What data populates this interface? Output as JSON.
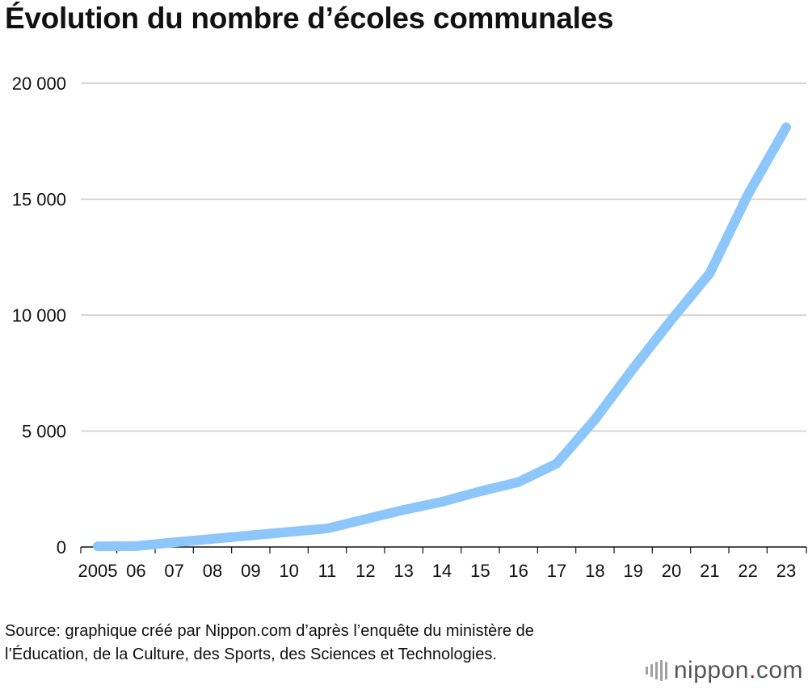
{
  "chart_data": {
    "type": "line",
    "title": "Évolution du nombre d’écoles communales",
    "xlabel": "",
    "ylabel": "",
    "categories": [
      "2005",
      "06",
      "07",
      "08",
      "09",
      "10",
      "11",
      "12",
      "13",
      "14",
      "15",
      "16",
      "17",
      "18",
      "19",
      "20",
      "21",
      "22",
      "23"
    ],
    "series": [
      {
        "name": "Écoles communales",
        "values": [
          30,
          40,
          200,
          350,
          500,
          650,
          800,
          1200,
          1600,
          1950,
          2400,
          2800,
          3600,
          5500,
          7700,
          9800,
          11800,
          15200,
          18100
        ],
        "color": "#8cc6fb"
      }
    ],
    "ylim": [
      0,
      20000
    ],
    "yticks": [
      0,
      5000,
      10000,
      15000,
      20000
    ],
    "ytick_labels": [
      "0",
      "5 000",
      "10 000",
      "15 000",
      "20 000"
    ],
    "grid": true,
    "legend": "none"
  },
  "source": "Source: graphique créé par Nippon.com d’après l’enquête du ministère de l’Éducation, de la Culture, des Sports, des Sciences et Technologies.",
  "logo": {
    "name": "nippon",
    "dot": ".",
    "domain": "com"
  },
  "colors": {
    "line": "#8cc6fb",
    "grid": "#c8c8c8",
    "axis": "#111111",
    "logo_dot": "#e60012"
  }
}
